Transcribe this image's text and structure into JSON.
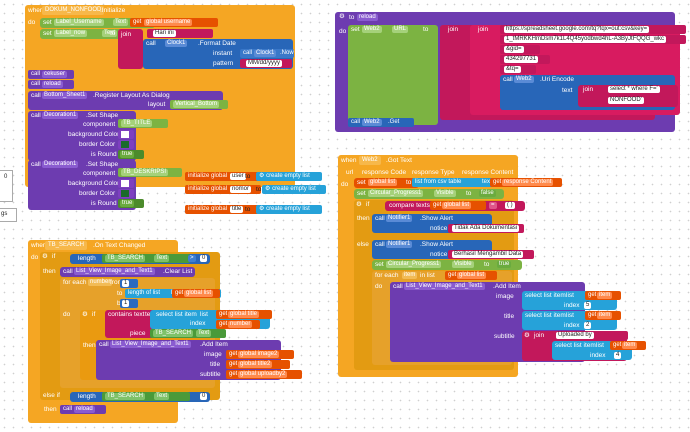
{
  "left_edge": {
    "digit": "0",
    "fragment": "gs"
  },
  "nonfood": {
    "when": "when",
    "component": "DOKUM_NONFOOD",
    "event": ".Initialize",
    "do": "do",
    "set1": {
      "set": "set",
      "comp": "Label_Username",
      "prop": "Text",
      "to": "to",
      "get": "get",
      "var": "global username"
    },
    "set2": {
      "set": "set",
      "comp": "Label_now",
      "prop": "Text",
      "to": "to",
      "join": "join",
      "text": "Hari ini"
    },
    "clock": {
      "call": "call",
      "comp": "Clock1",
      "method": ".Format Date",
      "instant": "instant",
      "call2": "call",
      "comp2": "Clock1",
      "method2": ".Now",
      "pattern": "pattern",
      "pattern_value": "MM/dd/yyyy"
    },
    "calls": [
      {
        "call": "call",
        "name": "cekuser"
      },
      {
        "call": "call",
        "name": "reload"
      }
    ],
    "dialog": {
      "call": "call",
      "comp": "Bottom_Sheet1",
      "method": ".Register Layout As Dialog",
      "layout": "layout",
      "value": "Vertical_Bottom"
    },
    "shape1": {
      "call": "call",
      "comp": "Decoration1",
      "method": ".Set Shape",
      "component": "component",
      "component_value": "TB_TITLE",
      "bg": "background Color",
      "border": "border Color",
      "round": "is Round",
      "round_value": "true"
    },
    "shape2": {
      "call": "call",
      "comp": "Decoration1",
      "method": ".Set Shape",
      "component": "component",
      "component_value": "TB_DESKRIPSI",
      "bg": "background Color",
      "border": "border Color",
      "round": "is Round",
      "round_value": "true"
    },
    "globals": [
      {
        "init": "initialize global",
        "name": "user",
        "to": "to",
        "value": "create empty list"
      },
      {
        "init": "initialize global",
        "name": "nomor",
        "to": "to",
        "value": "create empty list"
      },
      {
        "init": "initialize global",
        "name": "title",
        "to": "to",
        "value": "create empty list"
      }
    ]
  },
  "search": {
    "when": "when",
    "component": "TB_SEARCH",
    "event": ".On Text Changed",
    "do": "do",
    "if": "if",
    "length": "length",
    "comp": "TB_SEARCH",
    "prop": "Text",
    "op": ">",
    "zero": "0",
    "then": "then",
    "clear_call": "call",
    "clear_comp": "List_View_Image_and_Text1",
    "clear_method": ".Clear List",
    "for_each": "for each",
    "number": "number",
    "from": "from",
    "from_value": "1",
    "to": "to",
    "length_of_list": "length of list",
    "list": "list",
    "get": "get",
    "global_list": "global list",
    "by": "by",
    "by_value": "1",
    "if2": "if",
    "contains": "contains text",
    "text": "text",
    "select": "select list item",
    "sel_list": "list",
    "global_title": "global title",
    "index": "index",
    "number_var": "number",
    "piece": "piece",
    "piece_comp": "TB_SEARCH",
    "piece_prop": "Text",
    "then2": "then",
    "add_call": "call",
    "add_comp": "List_View_Image_and_Text1",
    "add_method": ".Add Item",
    "image": "image",
    "image_var": "global image2",
    "title": "title",
    "title_var": "global title2",
    "subtitle": "subtitle",
    "subtitle_var": "global uploadby2",
    "else_if": "else if",
    "then3": "then",
    "reload_call": "call",
    "reload": "reload"
  },
  "reload": {
    "to": "to",
    "name": "reload",
    "do": "do",
    "set": "set",
    "comp": "Web2",
    "prop": "URL",
    "to2": "to",
    "join": "join",
    "url1": "https://spreadsheet.google.com/tq?tqx=out:csv&key=",
    "url2": "1_tMRKKHmDsm7k1L4Q45yodbwd4hL-A3ByJtFQQG_wkc",
    "url3": "&gid=",
    "url4": "434297731",
    "url5": "&tq=",
    "encode_call": "call",
    "encode_comp": "Web2",
    "encode_method": ".Uri Encode",
    "text": "text",
    "q1": "select * where F='",
    "q2": "NONFOOD'",
    "get_call": "call",
    "get_comp": "Web2",
    "get_method": ".Get"
  },
  "gottext": {
    "when": "when",
    "component": "Web2",
    "event": ".Got Text",
    "params": [
      "url",
      "response Code",
      "response Type",
      "response Content"
    ],
    "do": "do",
    "set": "set",
    "var": "global list",
    "to": "to",
    "csv": "list from csv table",
    "text": "text",
    "get": "get",
    "content": "response Content",
    "set2": "set",
    "progress": "Circular_Progress1",
    "visible": "Visible",
    "false": "false",
    "if": "if",
    "compare": "compare texts",
    "global_list": "global list",
    "eq": "=",
    "empty": "( )",
    "then": "then",
    "alert_call": "call",
    "notifier": "Notifier1",
    "alert": ".Show Alert",
    "notice": "notice",
    "msg1": "Tidak Ada Dokumentasi",
    "else": "else",
    "msg2": "Berhasil Mengambil Data",
    "true": "true",
    "for_each": "for each",
    "item": "item",
    "in_list": "in list",
    "add_call": "call",
    "add_comp": "List_View_Image_and_Text1",
    "add_method": ".Add Item",
    "image": "image",
    "title": "title",
    "subtitle": "subtitle",
    "select": "select list item",
    "list": "list",
    "index": "index",
    "idx_image": "5",
    "idx_title": "2",
    "idx_sub": "4",
    "uploaded": "Uploaded by"
  }
}
